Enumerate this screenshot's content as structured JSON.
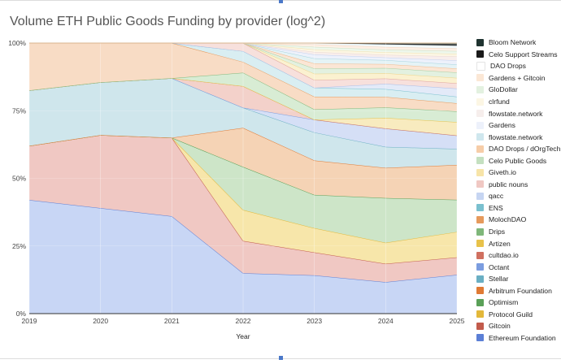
{
  "chart_data": {
    "type": "area",
    "stacked": true,
    "percent": true,
    "title": "Volume ETH Public Goods Funding by provider (log^2)",
    "xlabel": "Year",
    "ylabel": "",
    "x": [
      "2019",
      "2020",
      "2021",
      "2022",
      "2023",
      "2024",
      "2025"
    ],
    "y_ticks": [
      "0%",
      "25%",
      "50%",
      "75%",
      "100%"
    ],
    "ylim": [
      0,
      100
    ],
    "legend_position": "right",
    "series": [
      {
        "name": "Ethereum Foundation",
        "color": "#5b7fd6",
        "fill": "#c8d6f5",
        "values": [
          42,
          39,
          36,
          15,
          15,
          12,
          14.5
        ]
      },
      {
        "name": "Gitcoin",
        "color": "#c25b4c",
        "fill": "#f0c8c3",
        "values": [
          20,
          27,
          29,
          12,
          9,
          7,
          6.5
        ]
      },
      {
        "name": "Protocol Guild",
        "color": "#e3b83a",
        "fill": "#f7e6aa",
        "values": [
          0,
          0,
          0,
          11.5,
          9.5,
          8,
          9.5
        ]
      },
      {
        "name": "Optimism",
        "color": "#5aa058",
        "fill": "#cde5c8",
        "values": [
          0,
          0,
          0,
          16,
          13,
          17,
          12
        ]
      },
      {
        "name": "Arbitrum Foundation",
        "color": "#e07a34",
        "fill": "#f5d3b5",
        "values": [
          0,
          0,
          0,
          14.5,
          13.5,
          11.5,
          13
        ]
      },
      {
        "name": "Stellar",
        "color": "#6aafc3",
        "fill": "#cfe6ec",
        "values": [
          20.5,
          19.5,
          22,
          7.5,
          11,
          8,
          6
        ]
      },
      {
        "name": "Octant",
        "color": "#7b9de0",
        "fill": "#d5dff6",
        "values": [
          0,
          0,
          0,
          0,
          5,
          7,
          5
        ]
      },
      {
        "name": "cultdao.io",
        "color": "#d07060",
        "fill": "#f3d1ca",
        "values": [
          0,
          0,
          0,
          8,
          0,
          0,
          0
        ]
      },
      {
        "name": "Artizen",
        "color": "#e8c24a",
        "fill": "#f8ebbf",
        "values": [
          0,
          0,
          0,
          0,
          0,
          4,
          5
        ]
      },
      {
        "name": "Drips",
        "color": "#7fb77a",
        "fill": "#d8ecd4",
        "values": [
          0,
          0,
          0,
          5,
          4,
          4,
          4
        ]
      },
      {
        "name": "MolochDAO",
        "color": "#e69a5c",
        "fill": "#f8dcc5",
        "values": [
          17.5,
          14.5,
          13,
          4,
          5,
          4,
          3
        ]
      },
      {
        "name": "ENS",
        "color": "#7ac0cf",
        "fill": "#d9eef2",
        "values": [
          0,
          0,
          0,
          4,
          3.5,
          3,
          2.5
        ]
      },
      {
        "name": "qacc",
        "color": "#a9bde8",
        "fill": "#e3eaf8",
        "values": [
          0,
          0,
          0,
          0,
          0,
          2,
          3
        ]
      },
      {
        "name": "public nouns",
        "color": "#e0a39c",
        "fill": "#f7e0dc",
        "values": [
          0,
          0,
          0,
          3,
          3,
          2,
          2
        ]
      },
      {
        "name": "Giveth.io",
        "color": "#eed488",
        "fill": "#fbf1d0",
        "values": [
          0,
          0,
          0,
          0,
          2.5,
          2,
          2
        ]
      },
      {
        "name": "Celo Public Goods",
        "color": "#a7cfa3",
        "fill": "#e3f1e0",
        "values": [
          0,
          0,
          0,
          0,
          2,
          2,
          2
        ]
      },
      {
        "name": "DAO Drops / dOrgTech",
        "color": "#f1b98c",
        "fill": "#fbe6d5",
        "values": [
          0,
          0,
          0,
          0,
          2,
          1.5,
          1.5
        ]
      },
      {
        "name": "flowstate.network",
        "color": "#a5d3dd",
        "fill": "#e5f3f6",
        "values": [
          0,
          0,
          0,
          0,
          2,
          1.5,
          1.5
        ]
      },
      {
        "name": "Gardens",
        "color": "#c2d0f0",
        "fill": "#edf1fb",
        "values": [
          0,
          0,
          0,
          0,
          1.5,
          1,
          1.5
        ]
      },
      {
        "name": "flowstate.network",
        "color": "#ead6d3",
        "fill": "#f8eeec",
        "values": [
          0,
          0,
          0,
          0,
          1,
          1,
          1.5
        ]
      },
      {
        "name": "clrfund",
        "color": "#f3e2b0",
        "fill": "#fcf6e4",
        "values": [
          0,
          0,
          0,
          0,
          1,
          1,
          1
        ]
      },
      {
        "name": "GloDollar",
        "color": "#c9e2c6",
        "fill": "#eef7ec",
        "values": [
          0,
          0,
          0,
          0,
          1,
          1,
          1
        ]
      },
      {
        "name": "Gardens + Gitcoin",
        "color": "#f5d2b8",
        "fill": "#fdf0e6",
        "values": [
          0,
          0,
          0,
          0,
          1,
          1,
          1
        ]
      },
      {
        "name": "DAO Drops",
        "color": "#d0e6ec",
        "fill": "#f3f9fb",
        "values": [
          0,
          0,
          0,
          0,
          0.5,
          1,
          1
        ]
      },
      {
        "name": "Celo Support Streams",
        "color": "#1a1a1a",
        "fill": "#3b3b3b",
        "values": [
          0,
          0,
          0,
          0,
          0,
          0.3,
          0.5
        ]
      },
      {
        "name": "Bloom Network",
        "color": "#263a37",
        "fill": "#7b8a88",
        "values": [
          0,
          0,
          0,
          0,
          0,
          0.2,
          0.5
        ]
      }
    ]
  },
  "legend": [
    {
      "label": "Bloom Network",
      "color": "#1f3330"
    },
    {
      "label": "Celo Support Streams",
      "color": "#1a1a1a"
    },
    {
      "label": "DAO Drops",
      "color": "#ffffff"
    },
    {
      "label": "Gardens + Gitcoin",
      "color": "#fbe7d5"
    },
    {
      "label": "GloDollar",
      "color": "#e3f1e0"
    },
    {
      "label": "clrfund",
      "color": "#fcf6e4"
    },
    {
      "label": "flowstate.network",
      "color": "#f6eeec"
    },
    {
      "label": "Gardens",
      "color": "#edf1fb"
    },
    {
      "label": "flowstate.network",
      "color": "#cfe7ee"
    },
    {
      "label": "DAO Drops / dOrgTech",
      "color": "#f6cda8"
    },
    {
      "label": "Celo Public Goods",
      "color": "#c4e0c0"
    },
    {
      "label": "Giveth.io",
      "color": "#f7e4a8"
    },
    {
      "label": "public nouns",
      "color": "#f0c8c3"
    },
    {
      "label": "qacc",
      "color": "#c6d5f2"
    },
    {
      "label": "ENS",
      "color": "#7ac0cf"
    },
    {
      "label": "MolochDAO",
      "color": "#e69a5c"
    },
    {
      "label": "Drips",
      "color": "#7fb77a"
    },
    {
      "label": "Artizen",
      "color": "#e8c24a"
    },
    {
      "label": "cultdao.io",
      "color": "#d07060"
    },
    {
      "label": "Octant",
      "color": "#7b9de0"
    },
    {
      "label": "Stellar",
      "color": "#6aafc3"
    },
    {
      "label": "Arbitrum Foundation",
      "color": "#e07a34"
    },
    {
      "label": "Optimism",
      "color": "#5aa058"
    },
    {
      "label": "Protocol Guild",
      "color": "#e3b83a"
    },
    {
      "label": "Gitcoin",
      "color": "#c25b4c"
    },
    {
      "label": "Ethereum Foundation",
      "color": "#5b7fd6"
    }
  ]
}
